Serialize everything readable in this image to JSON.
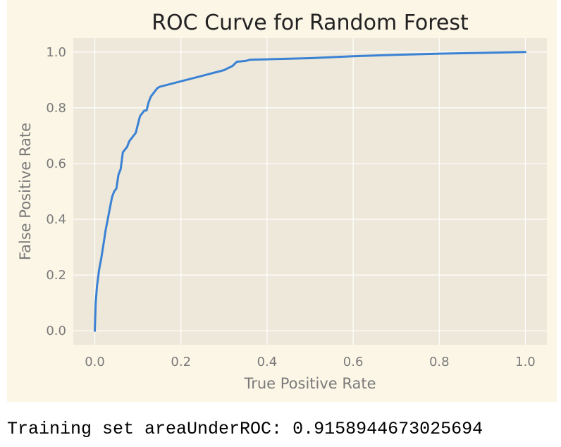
{
  "chart_data": {
    "type": "line",
    "title": "ROC Curve for Random Forest",
    "xlabel": "True Positive Rate",
    "ylabel": "False Positive Rate",
    "xlim": [
      -0.05,
      1.05
    ],
    "ylim": [
      -0.05,
      1.05
    ],
    "xticks": [
      "0.0",
      "0.2",
      "0.4",
      "0.6",
      "0.8",
      "1.0"
    ],
    "yticks": [
      "0.0",
      "0.2",
      "0.4",
      "0.6",
      "0.8",
      "1.0"
    ],
    "grid": true,
    "colors": {
      "plot_background": "#ede8da",
      "figure_background": "#fbf6e6",
      "grid": "#ffffff",
      "line": "#3b82d4"
    },
    "series": [
      {
        "x": [
          0.0,
          0.002,
          0.005,
          0.01,
          0.015,
          0.02,
          0.025,
          0.03,
          0.035,
          0.04,
          0.045,
          0.05,
          0.055,
          0.06,
          0.065,
          0.07,
          0.075,
          0.08,
          0.085,
          0.09,
          0.095,
          0.1,
          0.105,
          0.11,
          0.115,
          0.12,
          0.125,
          0.13,
          0.135,
          0.14,
          0.145,
          0.15,
          0.2,
          0.25,
          0.3,
          0.32,
          0.33,
          0.35,
          0.36,
          0.4,
          0.5,
          0.6,
          0.7,
          0.8,
          0.9,
          1.0
        ],
        "y": [
          0.0,
          0.1,
          0.16,
          0.22,
          0.26,
          0.31,
          0.36,
          0.4,
          0.44,
          0.48,
          0.5,
          0.51,
          0.56,
          0.58,
          0.64,
          0.65,
          0.66,
          0.68,
          0.69,
          0.7,
          0.71,
          0.74,
          0.77,
          0.78,
          0.79,
          0.79,
          0.82,
          0.84,
          0.85,
          0.86,
          0.87,
          0.875,
          0.895,
          0.915,
          0.935,
          0.95,
          0.965,
          0.968,
          0.972,
          0.974,
          0.978,
          0.985,
          0.99,
          0.994,
          0.997,
          1.0
        ]
      }
    ]
  },
  "output": {
    "text": "Training set areaUnderROC: 0.9158944673025694"
  }
}
